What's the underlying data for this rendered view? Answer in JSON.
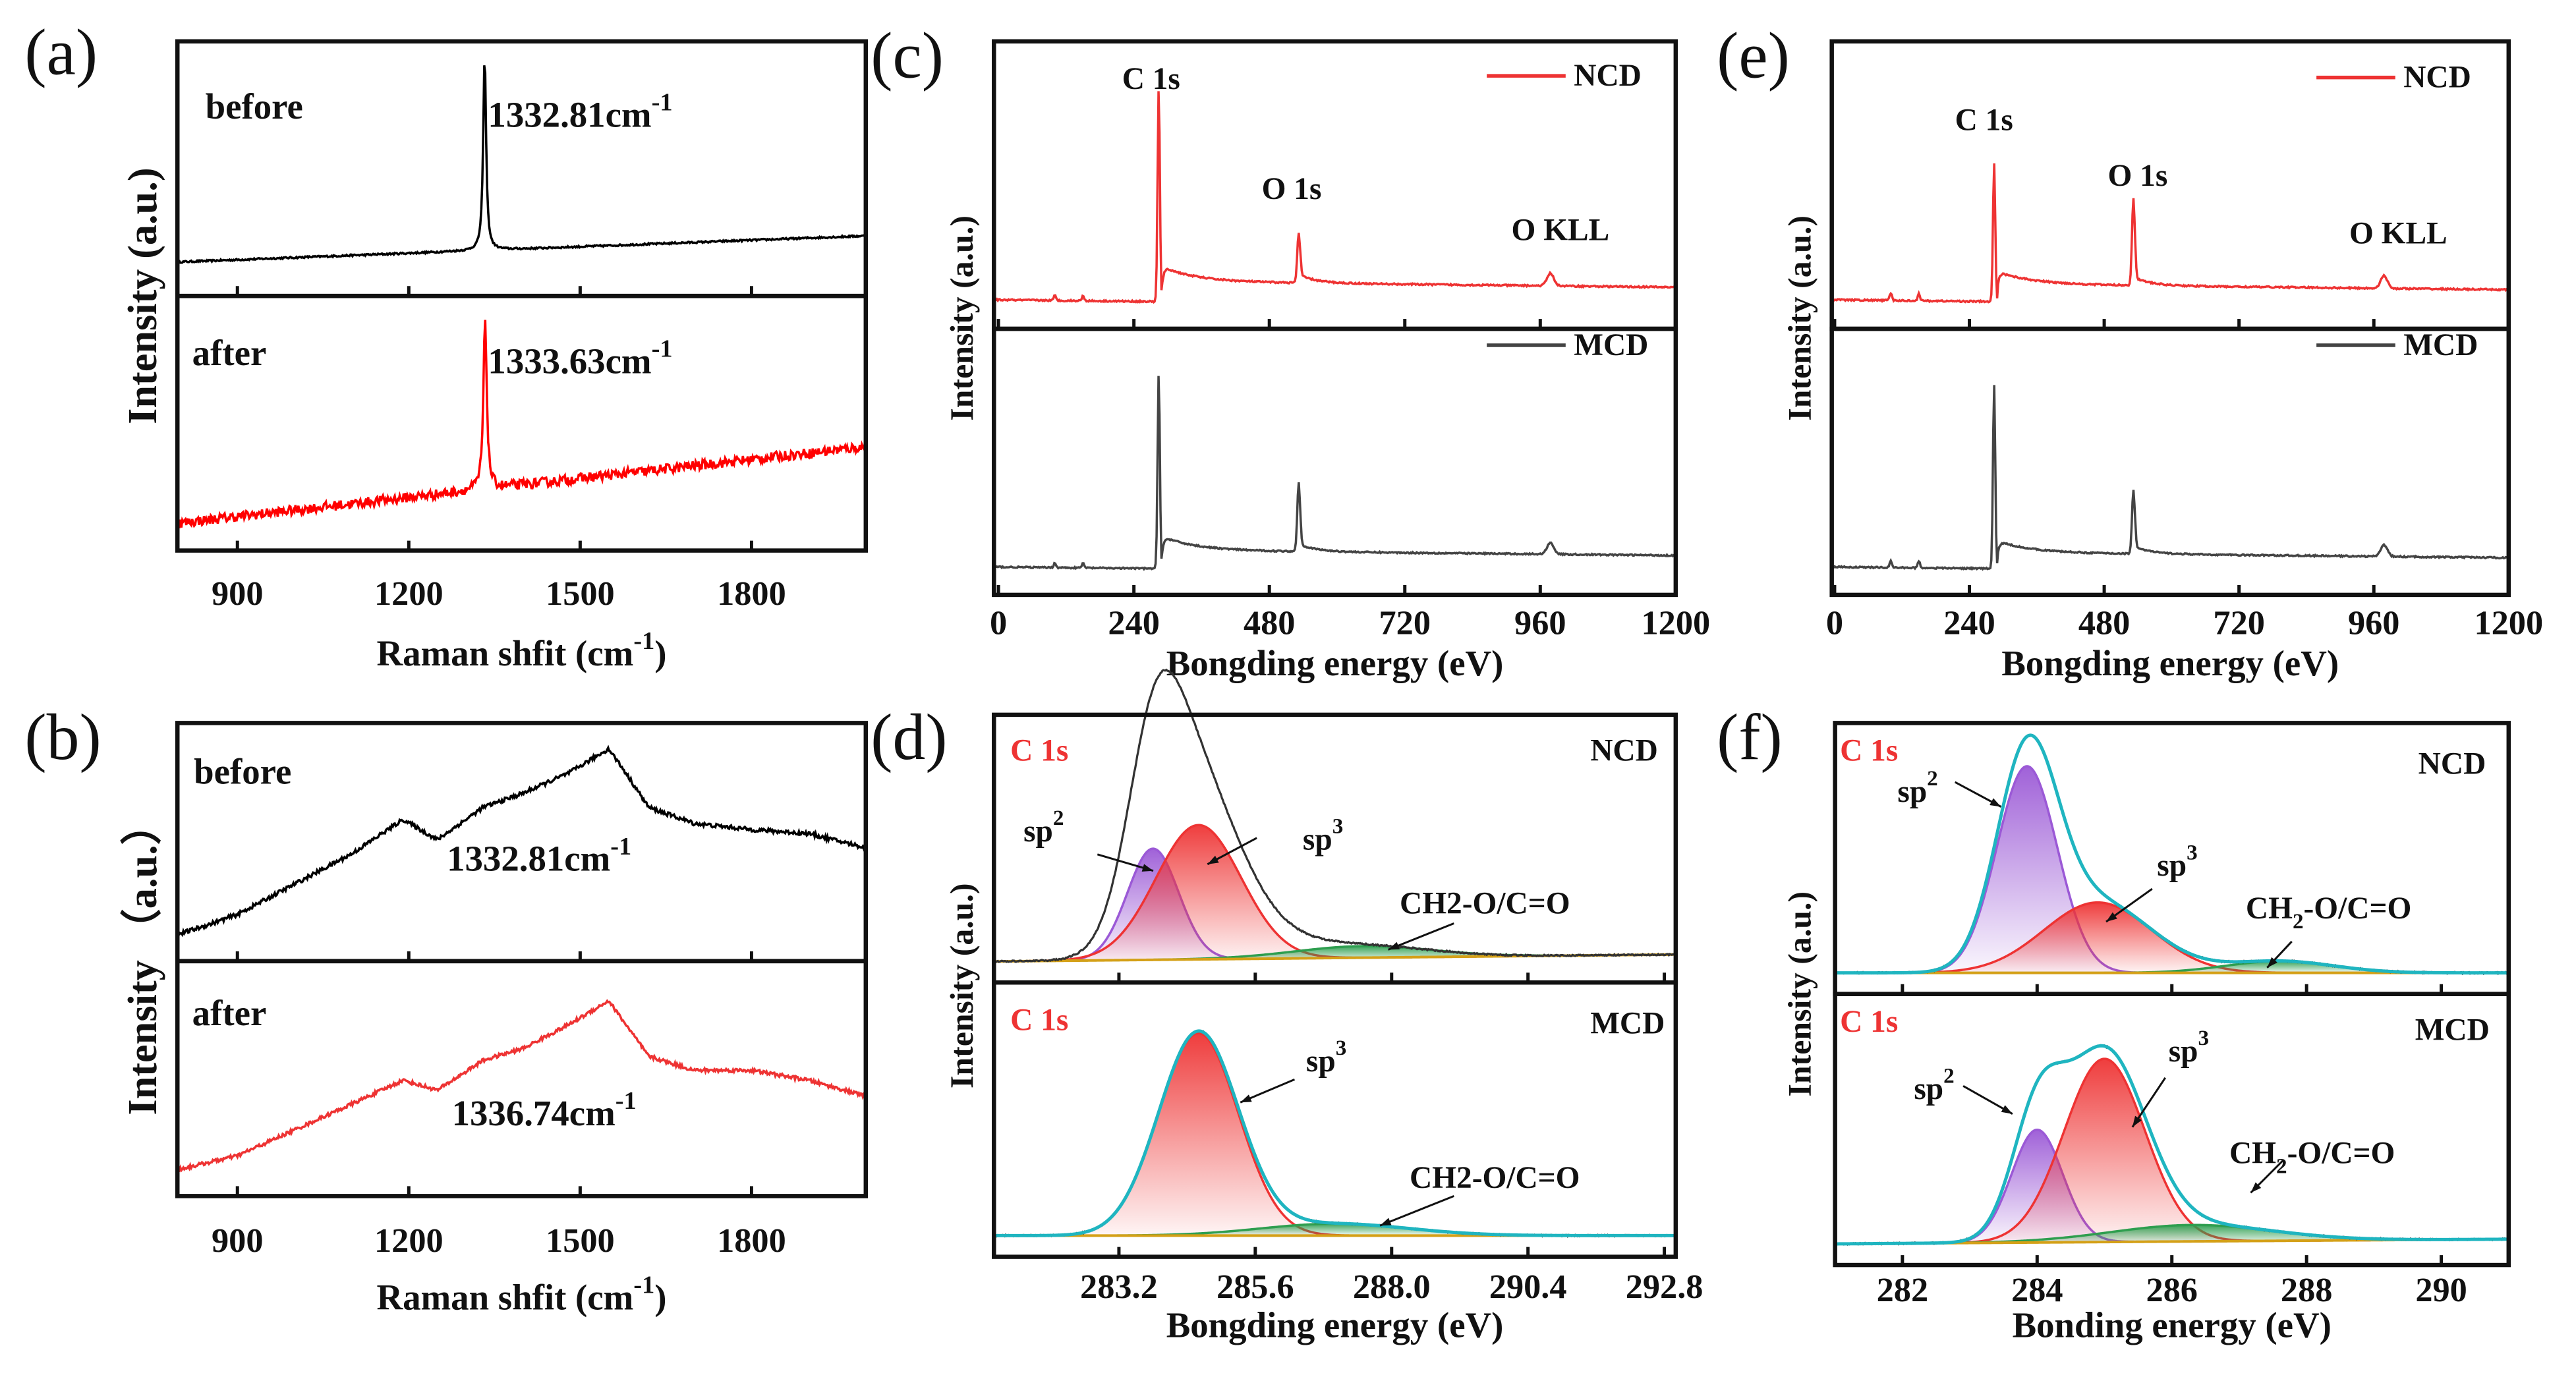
{
  "chart_data": [
    {
      "panel": "a",
      "label": "(a)",
      "type": "line",
      "xlim": [
        795,
        2000
      ],
      "xticks": [
        "900",
        "1200",
        "1500",
        "1800"
      ],
      "xlabel": {
        "text": "Raman shfit (cm",
        "sup": "-1",
        "tail": ")"
      },
      "ylabel": {
        "text": "Intensity (a.u.)"
      },
      "subplots": [
        {
          "series": [
            {
              "name": "before",
              "color": "#000000",
              "baseline": [
                0.08,
                0.2
              ],
              "peaks": [
                {
                  "center": 1332.81,
                  "height": 0.9,
                  "width": 3,
                  "shape": "lorentz"
                }
              ],
              "noise": 0.008
            }
          ],
          "annotations": [
            {
              "text": "before"
            },
            {
              "text": "1332.81cm",
              "sup": "-1"
            }
          ]
        },
        {
          "series": [
            {
              "name": "after",
              "color": "#ff0000",
              "baseline": [
                0.05,
                0.4
              ],
              "peaks": [
                {
                  "center": 1333.63,
                  "height": 0.78,
                  "width": 3.5,
                  "shape": "lorentz"
                }
              ],
              "noise": 0.045
            }
          ],
          "annotations": [
            {
              "text": "after"
            },
            {
              "text": "1333.63cm",
              "sup": "-1"
            }
          ]
        }
      ]
    },
    {
      "panel": "b",
      "label": "(b)",
      "type": "line",
      "xlim": [
        795,
        2000
      ],
      "xticks": [
        "900",
        "1200",
        "1500",
        "1800"
      ],
      "xlabel": {
        "text": "Raman shfit (cm",
        "sup": "-1",
        "tail": ")"
      },
      "ylabel": {
        "text": "Intensity （a.u.）"
      },
      "subplots": [
        {
          "series": [
            {
              "name": "before",
              "color": "#000000",
              "noise": 0.02,
              "points": [
                [
                  795,
                  0.05
                ],
                [
                  850,
                  0.1
                ],
                [
                  900,
                  0.15
                ],
                [
                  1000,
                  0.3
                ],
                [
                  1100,
                  0.45
                ],
                [
                  1190,
                  0.62
                ],
                [
                  1250,
                  0.52
                ],
                [
                  1330,
                  0.68
                ],
                [
                  1400,
                  0.75
                ],
                [
                  1480,
                  0.85
                ],
                [
                  1550,
                  0.97
                ],
                [
                  1580,
                  0.85
                ],
                [
                  1620,
                  0.68
                ],
                [
                  1700,
                  0.6
                ],
                [
                  1800,
                  0.57
                ],
                [
                  1900,
                  0.55
                ],
                [
                  2000,
                  0.48
                ]
              ]
            }
          ],
          "annotations": [
            {
              "text": "before"
            },
            {
              "text": "1332.81cm",
              "sup": "-1"
            }
          ]
        },
        {
          "series": [
            {
              "name": "after",
              "color": "#ee3333",
              "noise": 0.018,
              "points": [
                [
                  795,
                  0.05
                ],
                [
                  900,
                  0.12
                ],
                [
                  1000,
                  0.25
                ],
                [
                  1100,
                  0.38
                ],
                [
                  1190,
                  0.5
                ],
                [
                  1250,
                  0.45
                ],
                [
                  1330,
                  0.6
                ],
                [
                  1400,
                  0.66
                ],
                [
                  1480,
                  0.78
                ],
                [
                  1550,
                  0.9
                ],
                [
                  1620,
                  0.62
                ],
                [
                  1700,
                  0.55
                ],
                [
                  1800,
                  0.55
                ],
                [
                  1900,
                  0.5
                ],
                [
                  2000,
                  0.42
                ]
              ]
            }
          ],
          "annotations": [
            {
              "text": "after"
            },
            {
              "text": "1336.74cm",
              "sup": "-1"
            }
          ]
        }
      ]
    },
    {
      "panel": "c",
      "label": "(c)",
      "type": "line",
      "xlim": [
        -8,
        1200
      ],
      "xticks": [
        "0",
        "240",
        "480",
        "720",
        "960",
        "1200"
      ],
      "xlabel": {
        "text": "Bongding energy (eV)"
      },
      "ylabel": {
        "text": "Intensity (a.u.)"
      },
      "subplots": [
        {
          "legend": {
            "label": "NCD",
            "color": "#ee3333"
          },
          "series": [
            {
              "name": "NCD",
              "color": "#ee3333",
              "baseline": [
                0.05,
                0.02
              ],
              "noise": 0.006,
              "peaks": [
                {
                  "center": 284,
                  "height": 0.85,
                  "width": 2
                },
                {
                  "center": 532,
                  "height": 0.2,
                  "width": 2.5
                },
                {
                  "center": 978,
                  "height": 0.05,
                  "width": 6
                },
                {
                  "center": 100,
                  "height": 0.02,
                  "width": 2
                },
                {
                  "center": 150,
                  "height": 0.02,
                  "width": 2
                }
              ],
              "steps": [
                {
                  "at": 290,
                  "height": 0.06,
                  "decay": 60,
                  "floor": 0.08
                },
                {
                  "at": 535,
                  "height": 0.03,
                  "decay": 30,
                  "floor": 0
                }
              ]
            }
          ],
          "annotations": [
            {
              "text": "C 1s"
            },
            {
              "text": "O 1s"
            },
            {
              "text": "O KLL"
            }
          ]
        },
        {
          "legend": {
            "label": "MCD",
            "color": "#444444"
          },
          "series": [
            {
              "name": "MCD",
              "color": "#444444",
              "baseline": [
                0.05,
                0.02
              ],
              "noise": 0.006,
              "peaks": [
                {
                  "center": 284,
                  "height": 0.85,
                  "width": 2
                },
                {
                  "center": 532,
                  "height": 0.3,
                  "width": 2.5
                },
                {
                  "center": 978,
                  "height": 0.05,
                  "width": 6
                },
                {
                  "center": 100,
                  "height": 0.02,
                  "width": 2
                },
                {
                  "center": 150,
                  "height": 0.02,
                  "width": 2
                }
              ],
              "steps": [
                {
                  "at": 290,
                  "height": 0.06,
                  "decay": 60,
                  "floor": 0.08
                },
                {
                  "at": 535,
                  "height": 0.03,
                  "decay": 30,
                  "floor": 0
                }
              ]
            }
          ],
          "annotations": []
        }
      ]
    },
    {
      "panel": "e",
      "label": "(e)",
      "type": "line",
      "xlim": [
        -5,
        1200
      ],
      "xticks": [
        "0",
        "240",
        "480",
        "720",
        "960",
        "1200"
      ],
      "xlabel": {
        "text": "Bongding energy (eV)"
      },
      "ylabel": {
        "text": "Intensity (a.u.)"
      },
      "subplots": [
        {
          "legend": {
            "label": "NCD",
            "color": "#ee3333"
          },
          "series": [
            {
              "name": "NCD",
              "color": "#ee3333",
              "baseline": [
                0.05,
                0.02
              ],
              "noise": 0.006,
              "peaks": [
                {
                  "center": 284,
                  "height": 0.55,
                  "width": 2
                },
                {
                  "center": 532,
                  "height": 0.35,
                  "width": 2.5
                },
                {
                  "center": 978,
                  "height": 0.05,
                  "width": 6
                },
                {
                  "center": 100,
                  "height": 0.03,
                  "width": 2
                },
                {
                  "center": 150,
                  "height": 0.03,
                  "width": 2
                }
              ],
              "steps": [
                {
                  "at": 290,
                  "height": 0.05,
                  "decay": 60,
                  "floor": 0.07
                },
                {
                  "at": 535,
                  "height": 0.03,
                  "decay": 30,
                  "floor": 0
                }
              ]
            }
          ],
          "annotations": [
            {
              "text": "C 1s"
            },
            {
              "text": "O 1s"
            },
            {
              "text": "O KLL"
            }
          ]
        },
        {
          "legend": {
            "label": "MCD",
            "color": "#444444"
          },
          "series": [
            {
              "name": "MCD",
              "color": "#444444",
              "baseline": [
                0.05,
                0.02
              ],
              "noise": 0.006,
              "peaks": [
                {
                  "center": 284,
                  "height": 0.8,
                  "width": 2
                },
                {
                  "center": 532,
                  "height": 0.28,
                  "width": 2.5
                },
                {
                  "center": 978,
                  "height": 0.05,
                  "width": 6
                },
                {
                  "center": 100,
                  "height": 0.03,
                  "width": 2
                },
                {
                  "center": 150,
                  "height": 0.03,
                  "width": 2
                }
              ],
              "steps": [
                {
                  "at": 290,
                  "height": 0.05,
                  "decay": 60,
                  "floor": 0.07
                },
                {
                  "at": 535,
                  "height": 0.03,
                  "decay": 30,
                  "floor": 0
                }
              ]
            }
          ],
          "annotations": []
        }
      ]
    },
    {
      "panel": "d",
      "label": "(d)",
      "type": "area",
      "xlim": [
        281,
        293
      ],
      "xticks": [
        "283.2",
        "285.6",
        "288.0",
        "290.4",
        "292.8"
      ],
      "xlabel": {
        "text": "Bongding energy (eV)"
      },
      "ylabel": {
        "text": "Intensity (a.u.)"
      },
      "subplots": [
        {
          "fit": {
            "baseline": [
              0.02,
              0.05
            ],
            "envelope": false,
            "measured_color": "#333333",
            "measured_extra": [
              {
                "center": 284.0,
                "height": 0.35,
                "width": 0.6
              },
              {
                "center": 285.3,
                "height": 0.1,
                "width": 1.0
              }
            ],
            "components": [
              {
                "name": "sp2",
                "center": 283.8,
                "height": 0.48,
                "width": 0.45,
                "color": "#9b59d6"
              },
              {
                "name": "sp3",
                "center": 284.6,
                "height": 0.58,
                "width": 0.75,
                "color": "#ee3333"
              },
              {
                "name": "CH2-O/C=O",
                "center": 287.5,
                "height": 0.05,
                "width": 1.2,
                "color": "#2e9e4f"
              }
            ]
          },
          "annotations": [
            {
              "text": "C 1s",
              "color": "#ee3333"
            },
            {
              "text": "NCD"
            },
            {
              "text": "sp",
              "sup": "2"
            },
            {
              "text": "sp",
              "sup": "3"
            },
            {
              "text": "CH2-O/C=O"
            }
          ]
        },
        {
          "fit": {
            "baseline": [
              0.02,
              0.02
            ],
            "envelope": true,
            "measured_color": "#555555",
            "components": [
              {
                "name": "sp3",
                "center": 284.6,
                "height": 0.85,
                "width": 0.7,
                "color": "#ee3333"
              },
              {
                "name": "CH2-O/C=O",
                "center": 287.0,
                "height": 0.05,
                "width": 1.3,
                "color": "#2e9e4f"
              }
            ]
          },
          "annotations": [
            {
              "text": "C 1s",
              "color": "#ee3333"
            },
            {
              "text": "MCD"
            },
            {
              "text": "sp",
              "sup": "3"
            },
            {
              "text": "CH2-O/C=O"
            }
          ]
        }
      ]
    },
    {
      "panel": "f",
      "label": "(f)",
      "type": "area",
      "xlim": [
        281,
        291
      ],
      "xticks": [
        "282",
        "284",
        "286",
        "288",
        "290"
      ],
      "xlabel": {
        "text": "Bonding energy (eV)"
      },
      "ylabel": {
        "text": "Intensity (a.u.)"
      },
      "subplots": [
        {
          "fit": {
            "baseline": [
              0.02,
              0.02
            ],
            "envelope": true,
            "measured_color": "#333333",
            "components": [
              {
                "name": "sp2",
                "center": 283.85,
                "height": 0.88,
                "width": 0.45,
                "color": "#9b59d6"
              },
              {
                "name": "sp3",
                "center": 284.9,
                "height": 0.3,
                "width": 0.8,
                "color": "#ee3333"
              },
              {
                "name": "CH2-O/C=O",
                "center": 287.6,
                "height": 0.05,
                "width": 0.8,
                "color": "#2e9e4f"
              }
            ]
          },
          "annotations": [
            {
              "text": "C 1s",
              "color": "#ee3333"
            },
            {
              "text": "NCD"
            },
            {
              "text": "sp",
              "sup": "2"
            },
            {
              "text": "sp",
              "sup": "3"
            },
            {
              "text": "CH",
              "sub": "2",
              "tail": "-O/C=O"
            }
          ]
        },
        {
          "fit": {
            "baseline": [
              0.02,
              0.04
            ],
            "envelope": true,
            "measured_color": "#333333",
            "components": [
              {
                "name": "sp2",
                "center": 284.0,
                "height": 0.48,
                "width": 0.38,
                "color": "#9b59d6"
              },
              {
                "name": "sp3",
                "center": 285.0,
                "height": 0.78,
                "width": 0.6,
                "color": "#ee3333"
              },
              {
                "name": "CH2-O/C=O",
                "center": 286.3,
                "height": 0.07,
                "width": 1.2,
                "color": "#2e9e4f"
              }
            ]
          },
          "annotations": [
            {
              "text": "C 1s",
              "color": "#ee3333"
            },
            {
              "text": "MCD"
            },
            {
              "text": "sp",
              "sup": "2"
            },
            {
              "text": "sp",
              "sup": "3"
            },
            {
              "text": "CH",
              "sub": "2",
              "tail": "-O/C=O"
            }
          ]
        }
      ]
    }
  ]
}
